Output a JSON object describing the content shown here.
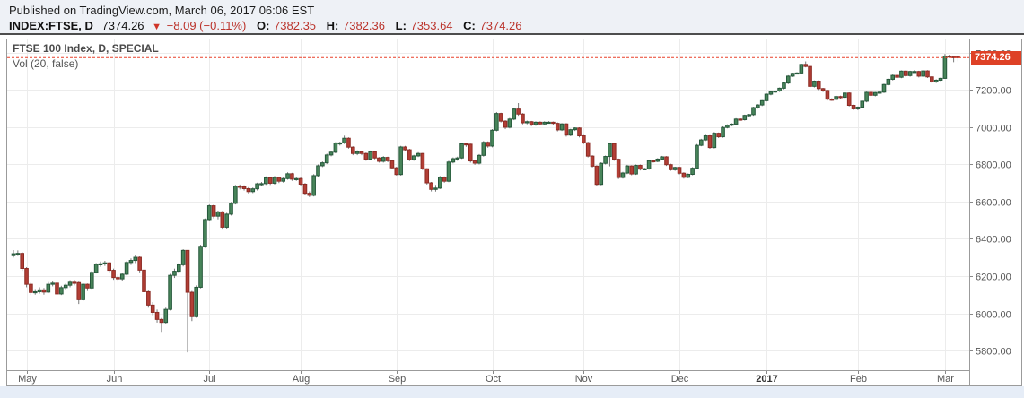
{
  "header": {
    "published_line": "Published on TradingView.com, March 06, 2017 06:06 EST",
    "quote": {
      "symbol": "INDEX:FTSE, D",
      "last": "7374.26",
      "direction_arrow": "▼",
      "change": "−8.09 (−0.11%)",
      "open_label": "O:",
      "open": "7382.35",
      "high_label": "H:",
      "high": "7382.36",
      "low_label": "L:",
      "low": "7353.64",
      "close_label": "C:",
      "close": "7374.26"
    }
  },
  "chart": {
    "title": "FTSE 100 Index, D, SPECIAL",
    "indicator": "Vol (20, false)",
    "price_label": "7374.26"
  },
  "chart_data": {
    "type": "candlestick",
    "title": "FTSE 100 Index, D, SPECIAL",
    "ylim": [
      5694,
      7477
    ],
    "grid": true,
    "last_price": 7374.26,
    "y_ticks": [
      {
        "value": 7400,
        "label": "7400.00"
      },
      {
        "value": 7200,
        "label": "7200.00"
      },
      {
        "value": 7000,
        "label": "7000.00"
      },
      {
        "value": 6800,
        "label": "6800.00"
      },
      {
        "value": 6600,
        "label": "6600.00"
      },
      {
        "value": 6400,
        "label": "6400.00"
      },
      {
        "value": 6200,
        "label": "6200.00"
      },
      {
        "value": 6000,
        "label": "6000.00"
      },
      {
        "value": 5800,
        "label": "5800.00"
      }
    ],
    "x_ticks": [
      {
        "label": "May",
        "index": 3,
        "bold": false
      },
      {
        "label": "Jun",
        "index": 23,
        "bold": false
      },
      {
        "label": "Jul",
        "index": 45,
        "bold": false
      },
      {
        "label": "Aug",
        "index": 66,
        "bold": false
      },
      {
        "label": "Sep",
        "index": 88,
        "bold": false
      },
      {
        "label": "Oct",
        "index": 110,
        "bold": false
      },
      {
        "label": "Nov",
        "index": 131,
        "bold": false
      },
      {
        "label": "Dec",
        "index": 153,
        "bold": false
      },
      {
        "label": "2017",
        "index": 173,
        "bold": true
      },
      {
        "label": "Feb",
        "index": 194,
        "bold": false
      },
      {
        "label": "Mar",
        "index": 214,
        "bold": false
      }
    ],
    "colors": {
      "up_fill": "#48855a",
      "up_border": "#25573a",
      "down_fill": "#b23e35",
      "down_border": "#8c2b24",
      "wick": "#787878",
      "grid": "#ececec",
      "border": "#9b9b9b",
      "axis_text": "#555555",
      "last_price_line": "#e8402a",
      "label_bg": "#de4126",
      "label_text": "#ffffff"
    },
    "ohlc": [
      [
        6310,
        6340,
        6300,
        6320
      ],
      [
        6320,
        6338,
        6308,
        6322
      ],
      [
        6322,
        6330,
        6228,
        6241
      ],
      [
        6241,
        6248,
        6140,
        6156
      ],
      [
        6156,
        6166,
        6098,
        6112
      ],
      [
        6112,
        6130,
        6100,
        6116
      ],
      [
        6116,
        6140,
        6106,
        6126
      ],
      [
        6126,
        6136,
        6100,
        6114
      ],
      [
        6114,
        6168,
        6108,
        6156
      ],
      [
        6156,
        6175,
        6145,
        6162
      ],
      [
        6162,
        6166,
        6090,
        6104
      ],
      [
        6104,
        6148,
        6098,
        6138
      ],
      [
        6138,
        6160,
        6126,
        6151
      ],
      [
        6151,
        6178,
        6140,
        6167
      ],
      [
        6167,
        6180,
        6150,
        6165
      ],
      [
        6165,
        6170,
        6050,
        6073
      ],
      [
        6073,
        6162,
        6065,
        6156
      ],
      [
        6156,
        6160,
        6120,
        6136
      ],
      [
        6136,
        6228,
        6130,
        6220
      ],
      [
        6220,
        6270,
        6214,
        6263
      ],
      [
        6263,
        6278,
        6250,
        6266
      ],
      [
        6266,
        6282,
        6255,
        6271
      ],
      [
        6271,
        6276,
        6220,
        6231
      ],
      [
        6231,
        6240,
        6180,
        6192
      ],
      [
        6192,
        6210,
        6170,
        6185
      ],
      [
        6185,
        6218,
        6176,
        6210
      ],
      [
        6210,
        6280,
        6204,
        6273
      ],
      [
        6273,
        6295,
        6260,
        6284
      ],
      [
        6284,
        6312,
        6270,
        6301
      ],
      [
        6301,
        6306,
        6220,
        6232
      ],
      [
        6232,
        6238,
        6100,
        6116
      ],
      [
        6116,
        6122,
        6030,
        6044
      ],
      [
        6044,
        6060,
        5990,
        6005
      ],
      [
        6005,
        6020,
        5950,
        5967
      ],
      [
        5967,
        5975,
        5900,
        5951
      ],
      [
        5951,
        6030,
        5945,
        6021
      ],
      [
        6021,
        6212,
        6015,
        6204
      ],
      [
        6204,
        6240,
        6190,
        6226
      ],
      [
        6226,
        6270,
        6215,
        6261
      ],
      [
        6261,
        6344,
        6252,
        6338
      ],
      [
        6338,
        6340,
        5790,
        6113
      ],
      [
        6113,
        6120,
        5958,
        5982
      ],
      [
        5982,
        6150,
        5976,
        6140
      ],
      [
        6140,
        6368,
        6134,
        6360
      ],
      [
        6360,
        6510,
        6352,
        6504
      ],
      [
        6504,
        6585,
        6498,
        6578
      ],
      [
        6578,
        6584,
        6510,
        6522
      ],
      [
        6522,
        6552,
        6505,
        6545
      ],
      [
        6545,
        6550,
        6450,
        6463
      ],
      [
        6463,
        6540,
        6455,
        6533
      ],
      [
        6533,
        6598,
        6526,
        6591
      ],
      [
        6591,
        6690,
        6585,
        6683
      ],
      [
        6683,
        6692,
        6666,
        6680
      ],
      [
        6680,
        6688,
        6660,
        6670
      ],
      [
        6670,
        6678,
        6644,
        6654
      ],
      [
        6654,
        6676,
        6646,
        6669
      ],
      [
        6669,
        6702,
        6660,
        6696
      ],
      [
        6696,
        6706,
        6685,
        6697
      ],
      [
        6697,
        6736,
        6690,
        6728
      ],
      [
        6728,
        6732,
        6690,
        6699
      ],
      [
        6699,
        6738,
        6692,
        6730
      ],
      [
        6730,
        6735,
        6700,
        6710
      ],
      [
        6710,
        6730,
        6702,
        6724
      ],
      [
        6724,
        6758,
        6718,
        6750
      ],
      [
        6750,
        6755,
        6712,
        6721
      ],
      [
        6721,
        6732,
        6712,
        6724
      ],
      [
        6724,
        6730,
        6685,
        6694
      ],
      [
        6694,
        6700,
        6636,
        6645
      ],
      [
        6645,
        6655,
        6625,
        6634
      ],
      [
        6634,
        6748,
        6628,
        6740
      ],
      [
        6740,
        6800,
        6734,
        6793
      ],
      [
        6793,
        6816,
        6786,
        6809
      ],
      [
        6809,
        6858,
        6802,
        6851
      ],
      [
        6851,
        6872,
        6844,
        6866
      ],
      [
        6866,
        6920,
        6860,
        6915
      ],
      [
        6915,
        6922,
        6902,
        6916
      ],
      [
        6916,
        6955,
        6910,
        6941
      ],
      [
        6941,
        6946,
        6885,
        6893
      ],
      [
        6893,
        6898,
        6850,
        6859
      ],
      [
        6859,
        6876,
        6850,
        6869
      ],
      [
        6869,
        6874,
        6850,
        6859
      ],
      [
        6859,
        6864,
        6820,
        6829
      ],
      [
        6829,
        6875,
        6822,
        6868
      ],
      [
        6868,
        6872,
        6828,
        6835
      ],
      [
        6835,
        6840,
        6810,
        6817
      ],
      [
        6817,
        6845,
        6810,
        6838
      ],
      [
        6838,
        6842,
        6812,
        6820
      ],
      [
        6820,
        6824,
        6775,
        6782
      ],
      [
        6782,
        6788,
        6740,
        6746
      ],
      [
        6746,
        6900,
        6740,
        6894
      ],
      [
        6894,
        6900,
        6870,
        6879
      ],
      [
        6879,
        6884,
        6818,
        6826
      ],
      [
        6826,
        6852,
        6820,
        6846
      ],
      [
        6846,
        6866,
        6840,
        6859
      ],
      [
        6859,
        6862,
        6770,
        6777
      ],
      [
        6777,
        6780,
        6692,
        6701
      ],
      [
        6701,
        6706,
        6655,
        6666
      ],
      [
        6666,
        6690,
        6654,
        6673
      ],
      [
        6673,
        6738,
        6668,
        6730
      ],
      [
        6730,
        6736,
        6702,
        6710
      ],
      [
        6710,
        6820,
        6705,
        6813
      ],
      [
        6813,
        6838,
        6806,
        6831
      ],
      [
        6831,
        6842,
        6820,
        6835
      ],
      [
        6835,
        6918,
        6830,
        6911
      ],
      [
        6911,
        6916,
        6895,
        6909
      ],
      [
        6909,
        6912,
        6810,
        6819
      ],
      [
        6819,
        6826,
        6798,
        6807
      ],
      [
        6807,
        6856,
        6800,
        6849
      ],
      [
        6849,
        6926,
        6842,
        6919
      ],
      [
        6919,
        6924,
        6890,
        6899
      ],
      [
        6899,
        6990,
        6892,
        6984
      ],
      [
        6984,
        7082,
        6978,
        7074
      ],
      [
        7074,
        7078,
        7026,
        7033
      ],
      [
        7033,
        7038,
        6990,
        7000
      ],
      [
        7000,
        7050,
        6994,
        7044
      ],
      [
        7044,
        7104,
        7038,
        7098
      ],
      [
        7098,
        7130,
        7062,
        7071
      ],
      [
        7071,
        7076,
        7016,
        7024
      ],
      [
        7024,
        7036,
        7016,
        7030
      ],
      [
        7030,
        7034,
        7006,
        7014
      ],
      [
        7014,
        7032,
        7008,
        7027
      ],
      [
        7027,
        7032,
        7010,
        7018
      ],
      [
        7018,
        7032,
        7012,
        7027
      ],
      [
        7027,
        7033,
        7020,
        7027
      ],
      [
        7027,
        7031,
        7014,
        7021
      ],
      [
        7021,
        7026,
        6978,
        6986
      ],
      [
        6986,
        7022,
        6980,
        7018
      ],
      [
        7018,
        7022,
        6950,
        6958
      ],
      [
        6958,
        6992,
        6952,
        6987
      ],
      [
        6987,
        7000,
        6980,
        6996
      ],
      [
        6996,
        7000,
        6946,
        6954
      ],
      [
        6954,
        6958,
        6910,
        6917
      ],
      [
        6917,
        6922,
        6838,
        6845
      ],
      [
        6845,
        6850,
        6784,
        6791
      ],
      [
        6791,
        6796,
        6686,
        6693
      ],
      [
        6693,
        6812,
        6688,
        6806
      ],
      [
        6806,
        6848,
        6800,
        6843
      ],
      [
        6843,
        6918,
        6790,
        6912
      ],
      [
        6912,
        6916,
        6820,
        6828
      ],
      [
        6828,
        6832,
        6722,
        6730
      ],
      [
        6730,
        6760,
        6724,
        6754
      ],
      [
        6754,
        6798,
        6748,
        6792
      ],
      [
        6792,
        6796,
        6742,
        6749
      ],
      [
        6749,
        6800,
        6744,
        6795
      ],
      [
        6795,
        6800,
        6768,
        6775
      ],
      [
        6775,
        6782,
        6770,
        6777
      ],
      [
        6777,
        6826,
        6772,
        6820
      ],
      [
        6820,
        6825,
        6810,
        6817
      ],
      [
        6817,
        6834,
        6812,
        6829
      ],
      [
        6829,
        6846,
        6824,
        6841
      ],
      [
        6841,
        6845,
        6792,
        6799
      ],
      [
        6799,
        6804,
        6766,
        6772
      ],
      [
        6772,
        6788,
        6766,
        6784
      ],
      [
        6784,
        6788,
        6746,
        6753
      ],
      [
        6753,
        6758,
        6724,
        6731
      ],
      [
        6731,
        6752,
        6726,
        6747
      ],
      [
        6747,
        6786,
        6742,
        6780
      ],
      [
        6780,
        6910,
        6775,
        6903
      ],
      [
        6903,
        6938,
        6898,
        6932
      ],
      [
        6932,
        6960,
        6926,
        6954
      ],
      [
        6954,
        6958,
        6884,
        6891
      ],
      [
        6891,
        6974,
        6886,
        6968
      ],
      [
        6968,
        6972,
        6942,
        6949
      ],
      [
        6949,
        7005,
        6944,
        6999
      ],
      [
        6999,
        7016,
        6994,
        7011
      ],
      [
        7011,
        7022,
        7005,
        7017
      ],
      [
        7017,
        7049,
        7012,
        7044
      ],
      [
        7044,
        7048,
        7035,
        7041
      ],
      [
        7041,
        7068,
        7036,
        7064
      ],
      [
        7064,
        7072,
        7058,
        7068
      ],
      [
        7068,
        7110,
        7062,
        7106
      ],
      [
        7106,
        7124,
        7100,
        7120
      ],
      [
        7120,
        7146,
        7114,
        7143
      ],
      [
        7143,
        7182,
        7138,
        7178
      ],
      [
        7178,
        7194,
        7172,
        7190
      ],
      [
        7190,
        7198,
        7184,
        7195
      ],
      [
        7195,
        7214,
        7190,
        7210
      ],
      [
        7210,
        7242,
        7204,
        7238
      ],
      [
        7238,
        7280,
        7232,
        7275
      ],
      [
        7275,
        7294,
        7270,
        7290
      ],
      [
        7290,
        7296,
        7284,
        7292
      ],
      [
        7292,
        7342,
        7286,
        7338
      ],
      [
        7338,
        7354,
        7322,
        7327
      ],
      [
        7327,
        7330,
        7212,
        7220
      ],
      [
        7220,
        7252,
        7214,
        7248
      ],
      [
        7248,
        7252,
        7200,
        7208
      ],
      [
        7208,
        7212,
        7190,
        7198
      ],
      [
        7198,
        7202,
        7144,
        7151
      ],
      [
        7151,
        7156,
        7142,
        7150
      ],
      [
        7150,
        7170,
        7144,
        7165
      ],
      [
        7165,
        7170,
        7154,
        7161
      ],
      [
        7161,
        7188,
        7156,
        7184
      ],
      [
        7184,
        7188,
        7112,
        7118
      ],
      [
        7118,
        7122,
        7093,
        7099
      ],
      [
        7099,
        7112,
        7092,
        7108
      ],
      [
        7108,
        7144,
        7102,
        7140
      ],
      [
        7140,
        7192,
        7134,
        7188
      ],
      [
        7188,
        7192,
        7166,
        7172
      ],
      [
        7172,
        7190,
        7166,
        7187
      ],
      [
        7187,
        7192,
        7180,
        7189
      ],
      [
        7189,
        7234,
        7184,
        7230
      ],
      [
        7230,
        7262,
        7225,
        7258
      ],
      [
        7258,
        7284,
        7252,
        7279
      ],
      [
        7279,
        7283,
        7262,
        7269
      ],
      [
        7269,
        7306,
        7264,
        7302
      ],
      [
        7302,
        7306,
        7272,
        7278
      ],
      [
        7278,
        7304,
        7272,
        7300
      ],
      [
        7300,
        7308,
        7294,
        7300
      ],
      [
        7300,
        7304,
        7268,
        7275
      ],
      [
        7275,
        7307,
        7270,
        7303
      ],
      [
        7303,
        7307,
        7265,
        7271
      ],
      [
        7271,
        7275,
        7238,
        7244
      ],
      [
        7244,
        7258,
        7238,
        7253
      ],
      [
        7253,
        7267,
        7248,
        7263
      ],
      [
        7263,
        7394,
        7261,
        7383
      ],
      [
        7383,
        7390,
        7372,
        7382
      ],
      [
        7382,
        7385,
        7350,
        7374
      ],
      [
        7382.35,
        7382.36,
        7353.64,
        7374.26
      ]
    ]
  }
}
